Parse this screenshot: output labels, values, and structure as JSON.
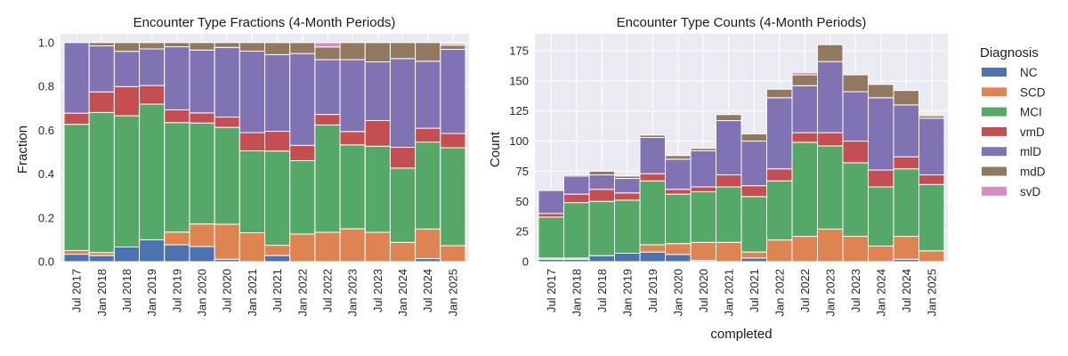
{
  "colors": {
    "NC": "#4c72b0",
    "SCD": "#dd8452",
    "MCI": "#55a868",
    "vmD": "#c44e52",
    "mlD": "#8172b3",
    "mdD": "#937860",
    "svD": "#da8bc3"
  },
  "legend": {
    "title": "Diagnosis",
    "entries": [
      "NC",
      "SCD",
      "MCI",
      "vmD",
      "mlD",
      "mdD",
      "svD"
    ]
  },
  "chart_data": [
    {
      "type": "bar",
      "stacked": true,
      "title": "Encounter Type Fractions (4-Month Periods)",
      "xlabel": "",
      "ylabel": "Fraction",
      "ylim": [
        0,
        1.04
      ],
      "yticks": [
        "0.0",
        "0.2",
        "0.4",
        "0.6",
        "0.8",
        "1.0"
      ],
      "grid": true,
      "categories": [
        "Jul 2017",
        "Jan 2018",
        "Jul 2018",
        "Jan 2019",
        "Jul 2019",
        "Jan 2020",
        "Jul 2020",
        "Jan 2021",
        "Jul 2021",
        "Jan 2022",
        "Jul 2022",
        "Jan 2023",
        "Jul 2023",
        "Jan 2024",
        "Jul 2024",
        "Jan 2025"
      ],
      "series": [
        {
          "name": "NC",
          "values": [
            0.034,
            0.028,
            0.067,
            0.1,
            0.077,
            0.069,
            0.011,
            0.0,
            0.028,
            0.0,
            0.0,
            0.0,
            0.0,
            0.0,
            0.014,
            0.0
          ]
        },
        {
          "name": "SCD",
          "values": [
            0.017,
            0.014,
            0.0,
            0.0,
            0.058,
            0.103,
            0.16,
            0.132,
            0.047,
            0.126,
            0.134,
            0.15,
            0.134,
            0.088,
            0.135,
            0.073
          ]
        },
        {
          "name": "MCI",
          "values": [
            0.576,
            0.639,
            0.599,
            0.619,
            0.5,
            0.461,
            0.442,
            0.374,
            0.43,
            0.335,
            0.49,
            0.383,
            0.393,
            0.339,
            0.397,
            0.447
          ]
        },
        {
          "name": "vmD",
          "values": [
            0.051,
            0.094,
            0.133,
            0.085,
            0.058,
            0.046,
            0.047,
            0.083,
            0.09,
            0.07,
            0.048,
            0.061,
            0.117,
            0.095,
            0.063,
            0.065
          ]
        },
        {
          "name": "mlD",
          "values": [
            0.322,
            0.21,
            0.161,
            0.167,
            0.288,
            0.287,
            0.318,
            0.372,
            0.35,
            0.419,
            0.25,
            0.328,
            0.268,
            0.405,
            0.306,
            0.384
          ]
        },
        {
          "name": "mdD",
          "values": [
            0.0,
            0.015,
            0.04,
            0.029,
            0.019,
            0.034,
            0.022,
            0.039,
            0.055,
            0.05,
            0.058,
            0.078,
            0.088,
            0.073,
            0.085,
            0.019
          ]
        },
        {
          "name": "svD",
          "values": [
            0.0,
            0.0,
            0.0,
            0.0,
            0.0,
            0.0,
            0.0,
            0.0,
            0.0,
            0.0,
            0.02,
            0.0,
            0.0,
            0.0,
            0.0,
            0.008
          ]
        }
      ]
    },
    {
      "type": "bar",
      "stacked": true,
      "title": "Encounter Type Counts (4-Month Periods)",
      "xlabel": "completed",
      "ylabel": "Count",
      "ylim": [
        0,
        189
      ],
      "yticks": [
        "0",
        "25",
        "50",
        "75",
        "100",
        "125",
        "150",
        "175"
      ],
      "grid": true,
      "categories": [
        "Jul 2017",
        "Jan 2018",
        "Jul 2018",
        "Jan 2019",
        "Jul 2019",
        "Jan 2020",
        "Jul 2020",
        "Jan 2021",
        "Jul 2021",
        "Jan 2022",
        "Jul 2022",
        "Jan 2023",
        "Jul 2023",
        "Jan 2024",
        "Jul 2024",
        "Jan 2025"
      ],
      "series": [
        {
          "name": "NC",
          "values": [
            2,
            2,
            5,
            7,
            8,
            6,
            1,
            0,
            3,
            0,
            0,
            0,
            0,
            0,
            2,
            0
          ]
        },
        {
          "name": "SCD",
          "values": [
            1,
            1,
            0,
            0,
            6,
            9,
            15,
            16,
            5,
            18,
            21,
            27,
            21,
            13,
            19,
            9
          ]
        },
        {
          "name": "MCI",
          "values": [
            34,
            46,
            45,
            44,
            53,
            41,
            42,
            46,
            46,
            49,
            78,
            69,
            61,
            49,
            56,
            55
          ]
        },
        {
          "name": "vmD",
          "values": [
            3,
            7,
            10,
            6,
            6,
            4,
            4,
            10,
            9,
            10,
            8,
            11,
            18,
            14,
            10,
            8
          ]
        },
        {
          "name": "mlD",
          "values": [
            19,
            15,
            12,
            12,
            30,
            25,
            30,
            45,
            37,
            59,
            39,
            59,
            41,
            60,
            43,
            47
          ]
        },
        {
          "name": "mdD",
          "values": [
            0,
            1,
            3,
            2,
            2,
            3,
            2,
            5,
            6,
            7,
            9,
            14,
            14,
            11,
            12,
            2
          ]
        },
        {
          "name": "svD",
          "values": [
            0,
            0,
            0,
            0,
            0,
            0,
            0,
            0,
            0,
            0,
            2,
            0,
            0,
            0,
            0,
            1
          ]
        }
      ]
    }
  ]
}
